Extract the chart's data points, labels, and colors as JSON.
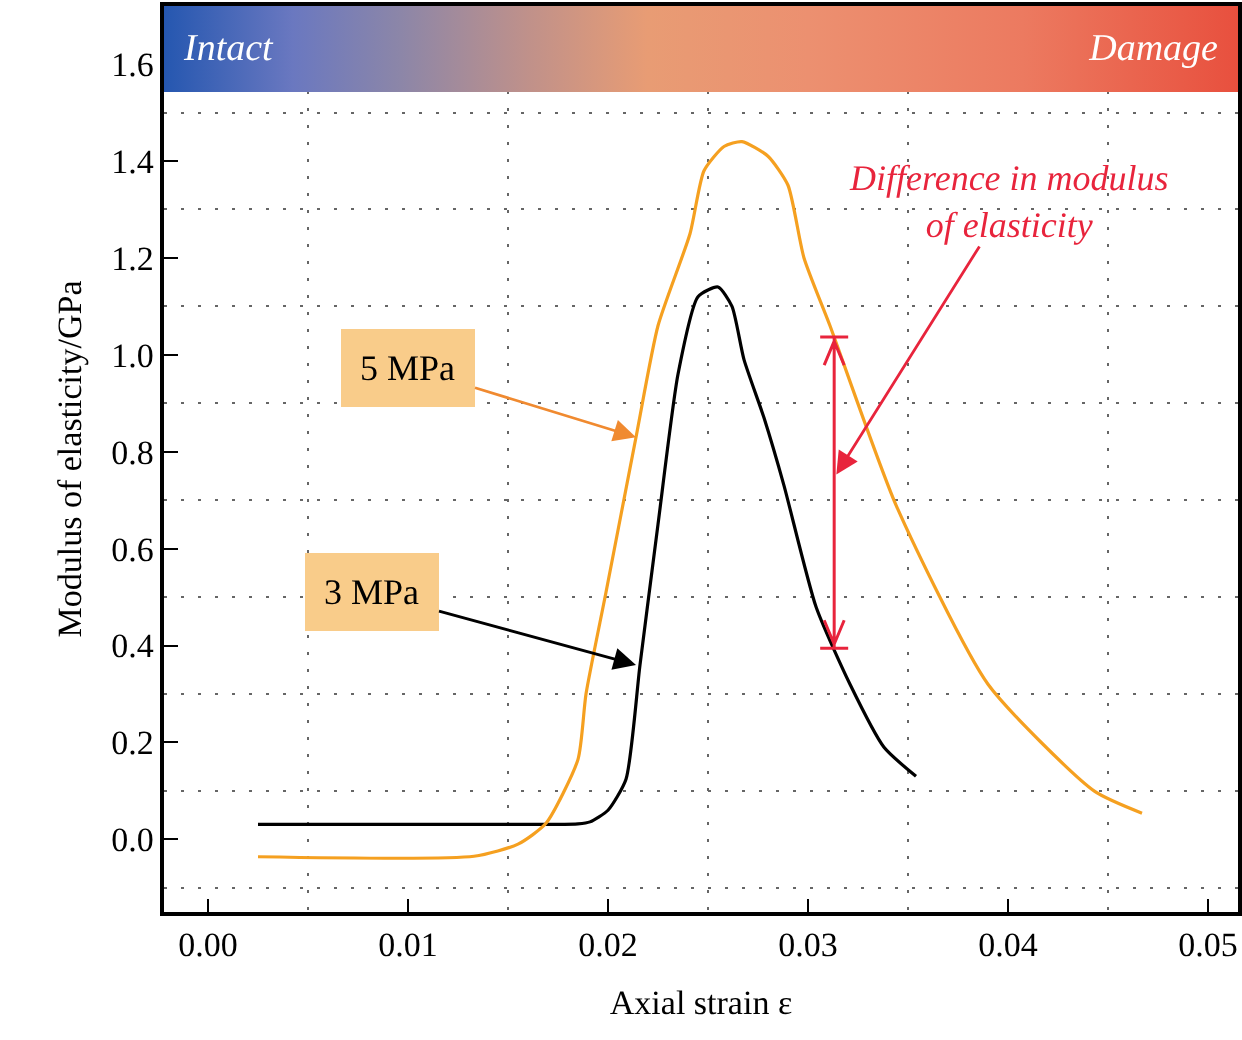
{
  "chart_data": {
    "type": "line",
    "xlabel": "Axial strain ε",
    "ylabel": "Modulus of elasticity/GPa",
    "xlim": [
      -0.0022,
      0.0515
    ],
    "xticks": [
      {
        "value": 0,
        "label": "0.00"
      },
      0.01,
      0.02,
      0.03,
      0.04,
      0.05
    ],
    "ylim": [
      -0.15,
      1.72
    ],
    "yticks": [
      {
        "value": 0,
        "label": "0.0"
      },
      0.2,
      0.4,
      0.6,
      0.8,
      {
        "value": 1,
        "label": "1.0"
      },
      1.2,
      1.4,
      1.6
    ],
    "grid": true,
    "line_style": "solid",
    "marker": "none",
    "series": [
      {
        "color": "#000000",
        "x": [
          0.0025,
          0.01,
          0.0185,
          0.0191,
          0.02,
          0.0209,
          0.0216,
          0.0225,
          0.0235,
          0.0245,
          0.0255,
          0.0262,
          0.0268,
          0.0278,
          0.0288,
          0.0304,
          0.0321,
          0.0338,
          0.0354
        ],
        "values": [
          0.031,
          0.031,
          0.032,
          0.036,
          0.06,
          0.124,
          0.36,
          0.65,
          0.96,
          1.12,
          1.14,
          1.1,
          0.99,
          0.87,
          0.73,
          0.48,
          0.32,
          0.19,
          0.13
        ]
      },
      {
        "color": "#f5a020",
        "x": [
          0.0025,
          0.0133,
          0.0155,
          0.0169,
          0.0185,
          0.0189,
          0.0199,
          0.0214,
          0.0225,
          0.0241,
          0.0248,
          0.0258,
          0.0267,
          0.028,
          0.029,
          0.0298,
          0.0311,
          0.0344,
          0.039,
          0.0443,
          0.0467
        ],
        "values": [
          -0.036,
          -0.035,
          -0.01,
          0.033,
          0.165,
          0.3,
          0.51,
          0.83,
          1.06,
          1.25,
          1.38,
          1.43,
          1.44,
          1.41,
          1.35,
          1.2,
          1.06,
          0.69,
          0.32,
          0.1,
          0.054
        ]
      }
    ],
    "annotations": [
      "Intact",
      "Damage",
      {
        "text": "5 MPa",
        "x": 0.0214,
        "y": 0.83
      },
      {
        "text": "3 MPa",
        "x": 0.0214,
        "y": 0.36
      },
      "Difference in modulus\nof elasticity"
    ]
  }
}
